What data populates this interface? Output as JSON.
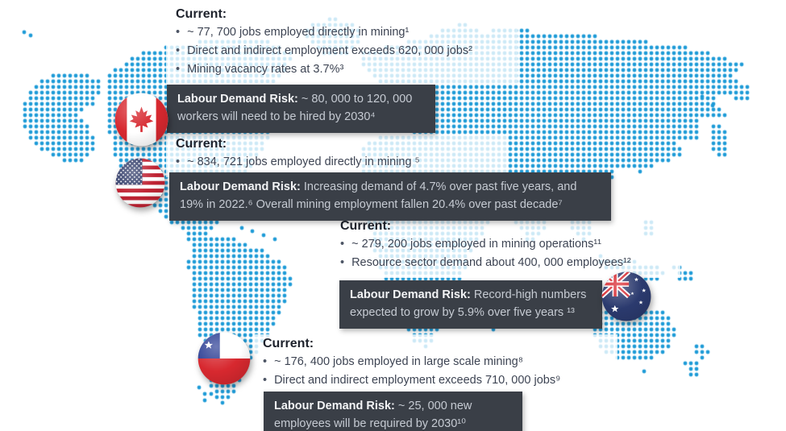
{
  "colors": {
    "map_dot_blue": "#1e9bd7",
    "panel_dark": "#3a3f47",
    "panel_label": "#f3f4f6",
    "panel_text": "#c6cbd3",
    "heading_text": "#1e222c",
    "body_text": "#3d4453",
    "flag_red": "#d7282f",
    "flag_navy": "#2b3a6e"
  },
  "countries": [
    {
      "flag_icon": "canada-flag-icon",
      "current": {
        "heading": "Current:",
        "bullets": [
          "~ 77, 700 jobs employed directly in mining¹",
          "Direct and indirect employment exceeds 620, 000 jobs²",
          "Mining vacancy rates at 3.7%³"
        ]
      },
      "risk": {
        "label": "Labour Demand Risk:",
        "text": "~ 80, 000 to 120, 000 workers will need to be hired by 2030⁴"
      }
    },
    {
      "flag_icon": "usa-flag-icon",
      "current": {
        "heading": "Current:",
        "bullets": [
          "~ 834, 721 jobs employed directly in mining ⁵"
        ]
      },
      "risk": {
        "label": "Labour Demand Risk:",
        "text": "Increasing demand of 4.7% over past five years, and 19% in 2022.⁶ Overall mining employment fallen 20.4% over past decade⁷"
      }
    },
    {
      "flag_icon": "australia-flag-icon",
      "current": {
        "heading": "Current:",
        "bullets": [
          "~ 279, 200 jobs employed in mining operations¹¹",
          "Resource sector demand about 400, 000 employees¹²"
        ]
      },
      "risk": {
        "label": "Labour Demand Risk:",
        "text": "Record-high numbers expected to grow by 5.9% over five years ¹³"
      }
    },
    {
      "flag_icon": "chile-flag-icon",
      "current": {
        "heading": "Current:",
        "bullets": [
          "~ 176, 400 jobs employed in large scale mining⁸",
          "Direct and indirect employment exceeds 710, 000 jobs⁹"
        ]
      },
      "risk": {
        "label": "Labour Demand Risk:",
        "text": "~ 25, 000 new employees will be required by 2030¹⁰"
      }
    }
  ]
}
